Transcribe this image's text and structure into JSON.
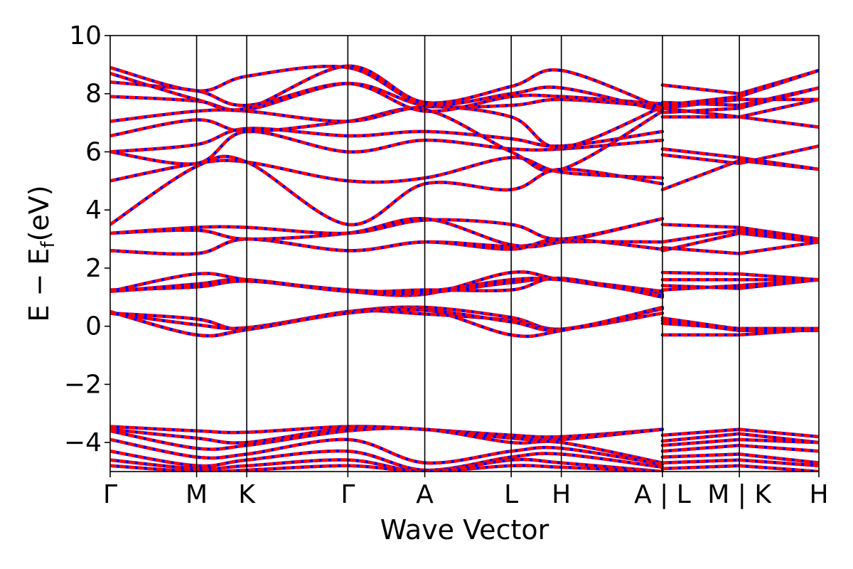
{
  "chart_data": {
    "type": "line",
    "xlabel": "Wave Vector",
    "ylabel": "E − E",
    "ylabel_subscript": "f",
    "ylabel_unit": "(eV)",
    "ylim": [
      -5,
      10
    ],
    "yticks": [
      -4,
      -2,
      0,
      2,
      4,
      6,
      8,
      10
    ],
    "ytick_labels": [
      "−4",
      "−2",
      "0",
      "2",
      "4",
      "6",
      "8",
      "10"
    ],
    "x_range": [
      0,
      8.2
    ],
    "kpoints": [
      {
        "label": "Γ",
        "x": 0
      },
      {
        "label": "M",
        "x": 1
      },
      {
        "label": "K",
        "x": 1.58
      },
      {
        "label": "Γ",
        "x": 2.75
      },
      {
        "label": "A",
        "x": 3.64
      },
      {
        "label": "L",
        "x": 4.64
      },
      {
        "label": "H",
        "x": 5.22
      },
      {
        "label": "A | L",
        "x": 6.39
      },
      {
        "label": "M | K",
        "x": 7.28
      },
      {
        "label": "H",
        "x": 8.2
      }
    ],
    "vlines": [
      1,
      1.58,
      2.75,
      3.64,
      4.64,
      5.22,
      6.39,
      7.28
    ],
    "grid": false,
    "colors": {
      "primary": "#ff0000",
      "secondary": "#0000ff",
      "frame": "#000000"
    },
    "bands": [
      {
        "y": [
          0.5,
          -0.3,
          -0.1,
          0.5,
          0.65,
          0.3,
          -0.1,
          0.45,
          0.28,
          -0.1,
          -0.1
        ]
      },
      {
        "y": [
          0.45,
          0.05,
          -0.05,
          0.48,
          0.58,
          -0.3,
          -0.15,
          0.6,
          0.2,
          -0.15,
          -0.15
        ]
      },
      {
        "y": [
          0.45,
          0.25,
          -0.1,
          0.5,
          0.42,
          0.2,
          -0.1,
          0.6,
          -0.3,
          -0.3,
          -0.1
        ]
      },
      {
        "y": [
          0.5,
          -0.3,
          -0.12,
          0.45,
          0.55,
          0.15,
          -0.12,
          0.65,
          0.1,
          -0.08,
          -0.08
        ]
      },
      {
        "y": [
          1.2,
          1.8,
          1.6,
          1.2,
          1.1,
          1.85,
          1.6,
          1.1,
          1.85,
          1.8,
          1.6
        ]
      },
      {
        "y": [
          1.25,
          1.35,
          1.55,
          1.25,
          1.2,
          1.6,
          1.6,
          1.2,
          1.6,
          1.6,
          1.6
        ]
      },
      {
        "y": [
          1.2,
          1.45,
          1.6,
          1.2,
          1.25,
          1.25,
          1.65,
          1.0,
          1.4,
          1.3,
          1.6
        ]
      },
      {
        "y": [
          1.2,
          1.4,
          1.6,
          1.2,
          1.15,
          1.5,
          1.6,
          1.05,
          1.25,
          1.4,
          1.6
        ]
      },
      {
        "y": [
          2.6,
          2.5,
          3.0,
          2.6,
          2.9,
          2.65,
          3.0,
          2.65,
          2.7,
          2.5,
          2.9
        ]
      },
      {
        "y": [
          2.6,
          2.5,
          3.0,
          2.6,
          2.9,
          2.75,
          2.9,
          2.9,
          2.6,
          3.2,
          2.9
        ]
      },
      {
        "y": [
          3.2,
          3.3,
          3.0,
          3.2,
          3.7,
          2.8,
          2.9,
          3.7,
          2.9,
          3.3,
          3.0
        ]
      },
      {
        "y": [
          3.2,
          3.4,
          3.4,
          3.2,
          3.65,
          3.5,
          3.0,
          3.7,
          3.5,
          3.4,
          3.0
        ]
      },
      {
        "y": [
          3.5,
          5.5,
          5.65,
          3.5,
          4.9,
          4.7,
          5.4,
          4.9,
          4.7,
          5.7,
          5.4
        ]
      },
      {
        "y": [
          5.0,
          5.6,
          5.65,
          5.0,
          5.1,
          5.8,
          5.3,
          5.1,
          6.1,
          5.8,
          5.4
        ]
      },
      {
        "y": [
          6.0,
          5.6,
          6.7,
          6.0,
          6.4,
          6.1,
          6.1,
          6.4,
          5.9,
          5.6,
          6.2
        ]
      },
      {
        "y": [
          6.0,
          6.25,
          6.8,
          6.55,
          6.7,
          6.45,
          6.2,
          6.7,
          7.2,
          7.2,
          6.85
        ]
      },
      {
        "y": [
          6.55,
          7.1,
          6.7,
          7.05,
          7.45,
          6.0,
          5.4,
          7.4,
          7.5,
          7.2,
          7.8
        ]
      },
      {
        "y": [
          7.05,
          7.4,
          7.4,
          7.05,
          7.55,
          7.2,
          6.15,
          7.55,
          7.5,
          7.8,
          7.8
        ]
      },
      {
        "y": [
          7.9,
          7.75,
          7.45,
          8.35,
          7.6,
          7.6,
          7.8,
          7.55,
          7.35,
          7.5,
          8.2
        ]
      },
      {
        "y": [
          8.4,
          8.1,
          7.6,
          8.35,
          7.4,
          7.9,
          7.9,
          7.65,
          7.7,
          7.6,
          8.2
        ]
      },
      {
        "y": [
          8.7,
          7.8,
          7.5,
          8.95,
          7.7,
          8.25,
          8.8,
          7.5,
          8.3,
          8.0,
          8.8
        ]
      },
      {
        "y": [
          8.9,
          8.1,
          8.6,
          8.9,
          7.65,
          8.0,
          8.2,
          7.4,
          7.6,
          7.9,
          8.8
        ]
      },
      {
        "y": [
          -3.45,
          -3.6,
          -3.65,
          -3.45,
          -3.55,
          -3.75,
          -3.8,
          -3.55,
          -3.75,
          -3.55,
          -3.8
        ]
      },
      {
        "y": [
          -3.55,
          -3.85,
          -4.0,
          -3.5,
          -3.55,
          -3.85,
          -3.9,
          -3.55,
          -3.95,
          -3.7,
          -4.0
        ]
      },
      {
        "y": [
          -3.6,
          -4.2,
          -4.1,
          -3.6,
          -3.55,
          -4.0,
          -4.0,
          -4.7,
          -4.1,
          -3.9,
          -4.0
        ]
      },
      {
        "y": [
          -3.9,
          -4.5,
          -4.4,
          -3.9,
          -4.7,
          -4.3,
          -4.2,
          -4.75,
          -4.3,
          -4.1,
          -4.3
        ]
      },
      {
        "y": [
          -4.3,
          -4.8,
          -4.6,
          -4.3,
          -4.95,
          -4.5,
          -4.4,
          -4.85,
          -4.5,
          -4.4,
          -4.7
        ]
      },
      {
        "y": [
          -4.6,
          -4.9,
          -4.8,
          -4.6,
          -5.0,
          -4.6,
          -4.7,
          -5.0,
          -4.7,
          -4.6,
          -4.8
        ]
      },
      {
        "y": [
          -4.8,
          -5.0,
          -4.95,
          -4.8,
          -5.0,
          -4.8,
          -4.85,
          -5.0,
          -4.9,
          -4.8,
          -5.0
        ]
      }
    ]
  }
}
